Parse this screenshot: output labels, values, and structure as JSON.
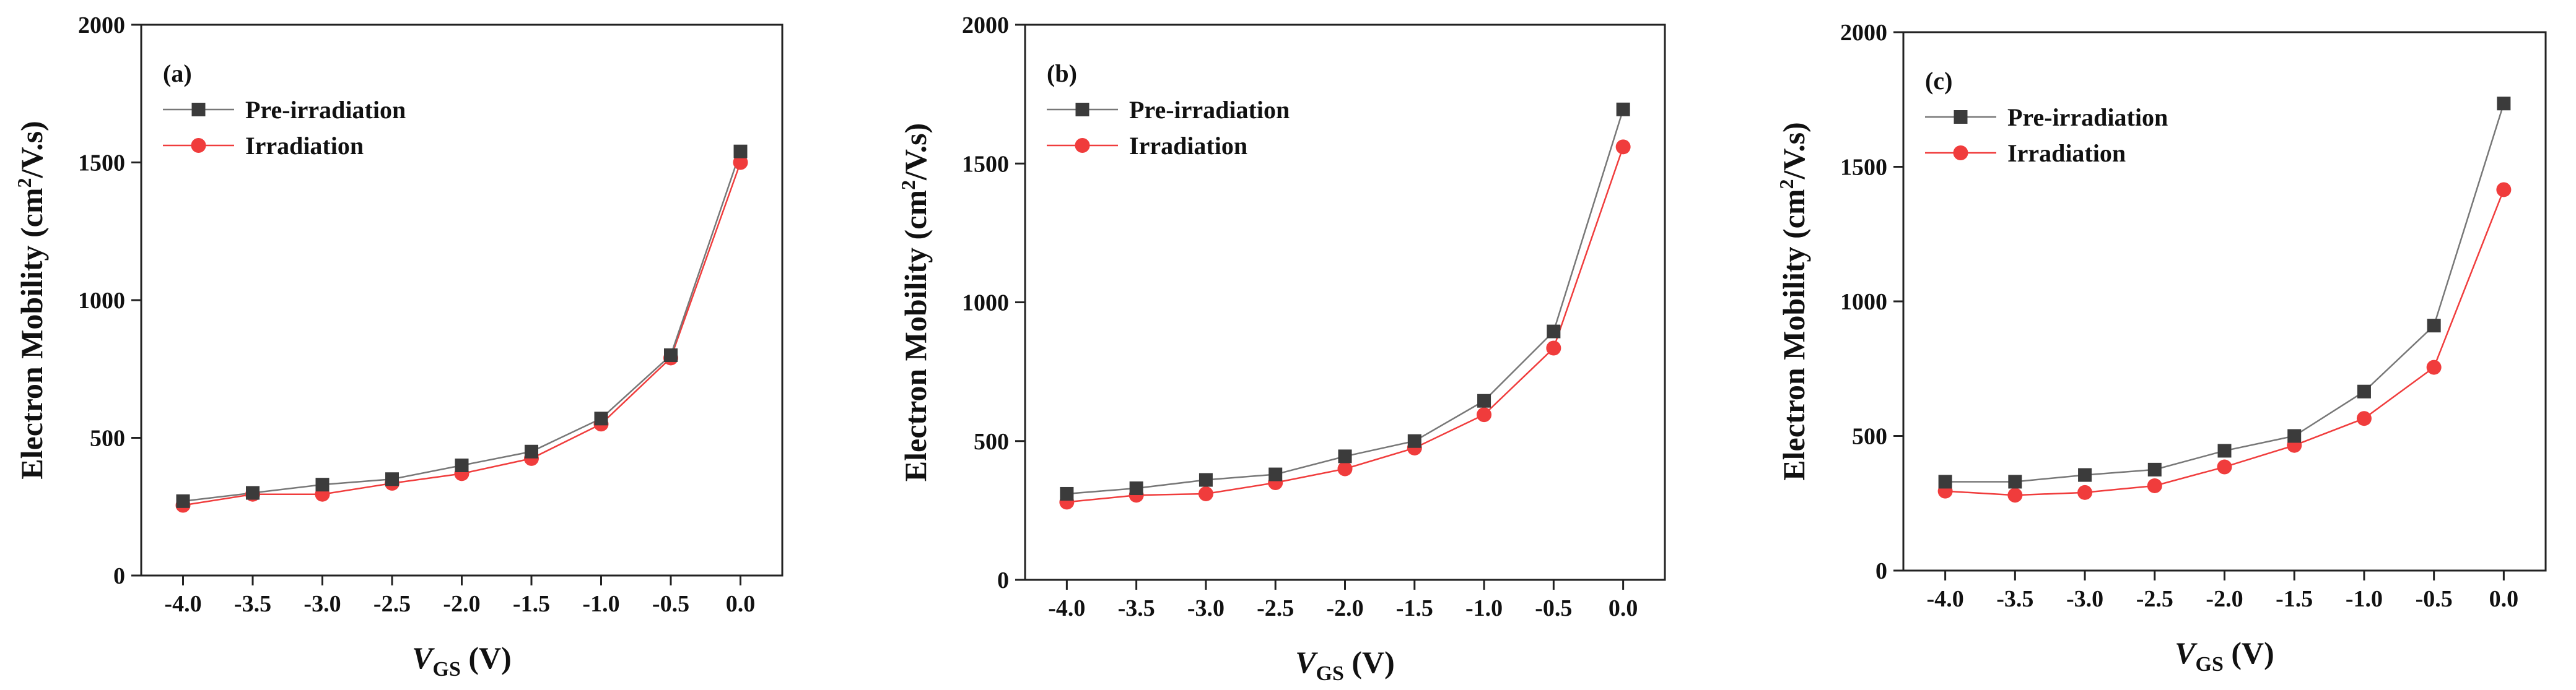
{
  "chart_data": [
    {
      "type": "line",
      "panel_label": "(a)",
      "x": [
        -4.0,
        -3.5,
        -3.0,
        -2.5,
        -2.0,
        -1.5,
        -1.0,
        -0.5,
        0.0
      ],
      "xtick_labels": [
        "-4.0",
        "-3.5",
        "-3.0",
        "-2.5",
        "-2.0",
        "-1.5",
        "-1.0",
        "-0.5",
        "0.0"
      ],
      "xlim": [
        -4.3,
        0.3
      ],
      "ylim": [
        0,
        2000
      ],
      "yticks": [
        0,
        500,
        1000,
        1500,
        2000
      ],
      "ytick_labels": [
        "0",
        "500",
        "1000",
        "1500",
        "2000"
      ],
      "ylabel": {
        "main": "Electron Mobility (cm",
        "sup": "2",
        "tail": "/V.s)"
      },
      "xlabel": {
        "italic": "V",
        "sub": "GS",
        "tail": " (V)"
      },
      "legend_position": "top-left",
      "series": [
        {
          "name": "Pre-irradiation",
          "marker": "square",
          "color": "#3b3b3b",
          "line_color": "#777777",
          "values": [
            270,
            300,
            330,
            350,
            400,
            450,
            570,
            800,
            1540
          ]
        },
        {
          "name": "Irradiation",
          "marker": "circle",
          "color": "#f03c3c",
          "line_color": "#f03c3c",
          "values": [
            255,
            295,
            295,
            335,
            370,
            425,
            550,
            790,
            1500
          ]
        }
      ]
    },
    {
      "type": "line",
      "panel_label": "(b)",
      "x": [
        -4.0,
        -3.5,
        -3.0,
        -2.5,
        -2.0,
        -1.5,
        -1.0,
        -0.5,
        0.0
      ],
      "xtick_labels": [
        "-4.0",
        "-3.5",
        "-3.0",
        "-2.5",
        "-2.0",
        "-1.5",
        "-1.0",
        "-0.5",
        "0.0"
      ],
      "xlim": [
        -4.3,
        0.3
      ],
      "ylim": [
        0,
        2000
      ],
      "yticks": [
        0,
        500,
        1000,
        1500,
        2000
      ],
      "ytick_labels": [
        "0",
        "500",
        "1000",
        "1500",
        "2000"
      ],
      "ylabel": {
        "main": "Electron Mobility (cm",
        "sup": "2",
        "tail": "/V.s)"
      },
      "xlabel": {
        "italic": "V",
        "sub": "GS",
        "tail": " (V)"
      },
      "legend_position": "top-left",
      "series": [
        {
          "name": "Pre-irradiation",
          "marker": "square",
          "color": "#3b3b3b",
          "line_color": "#777777",
          "values": [
            310,
            330,
            360,
            380,
            445,
            500,
            645,
            895,
            1695
          ]
        },
        {
          "name": "Irradiation",
          "marker": "circle",
          "color": "#f03c3c",
          "line_color": "#f03c3c",
          "values": [
            280,
            305,
            310,
            350,
            400,
            475,
            595,
            835,
            1560
          ]
        }
      ]
    },
    {
      "type": "line",
      "panel_label": "(c)",
      "x": [
        -4.0,
        -3.5,
        -3.0,
        -2.5,
        -2.0,
        -1.5,
        -1.0,
        -0.5,
        0.0
      ],
      "xtick_labels": [
        "-4.0",
        "-3.5",
        "-3.0",
        "-2.5",
        "-2.0",
        "-1.5",
        "-1.0",
        "-0.5",
        "0.0"
      ],
      "xlim": [
        -4.3,
        0.3
      ],
      "ylim": [
        0,
        2000
      ],
      "yticks": [
        0,
        500,
        1000,
        1500,
        2000
      ],
      "ytick_labels": [
        "0",
        "500",
        "1000",
        "1500",
        "2000"
      ],
      "ylabel": {
        "main": "Electron Mobility (cm",
        "sup": "2",
        "tail": "/V.s)"
      },
      "xlabel": {
        "italic": "V",
        "sub": "GS",
        "tail": " (V)"
      },
      "legend_position": "top-left",
      "series": [
        {
          "name": "Pre-irradiation",
          "marker": "square",
          "color": "#3b3b3b",
          "line_color": "#777777",
          "values": [
            330,
            330,
            355,
            375,
            445,
            500,
            665,
            910,
            1735
          ]
        },
        {
          "name": "Irradiation",
          "marker": "circle",
          "color": "#f03c3c",
          "line_color": "#f03c3c",
          "values": [
            295,
            280,
            290,
            315,
            385,
            465,
            565,
            755,
            1415
          ]
        }
      ]
    }
  ]
}
